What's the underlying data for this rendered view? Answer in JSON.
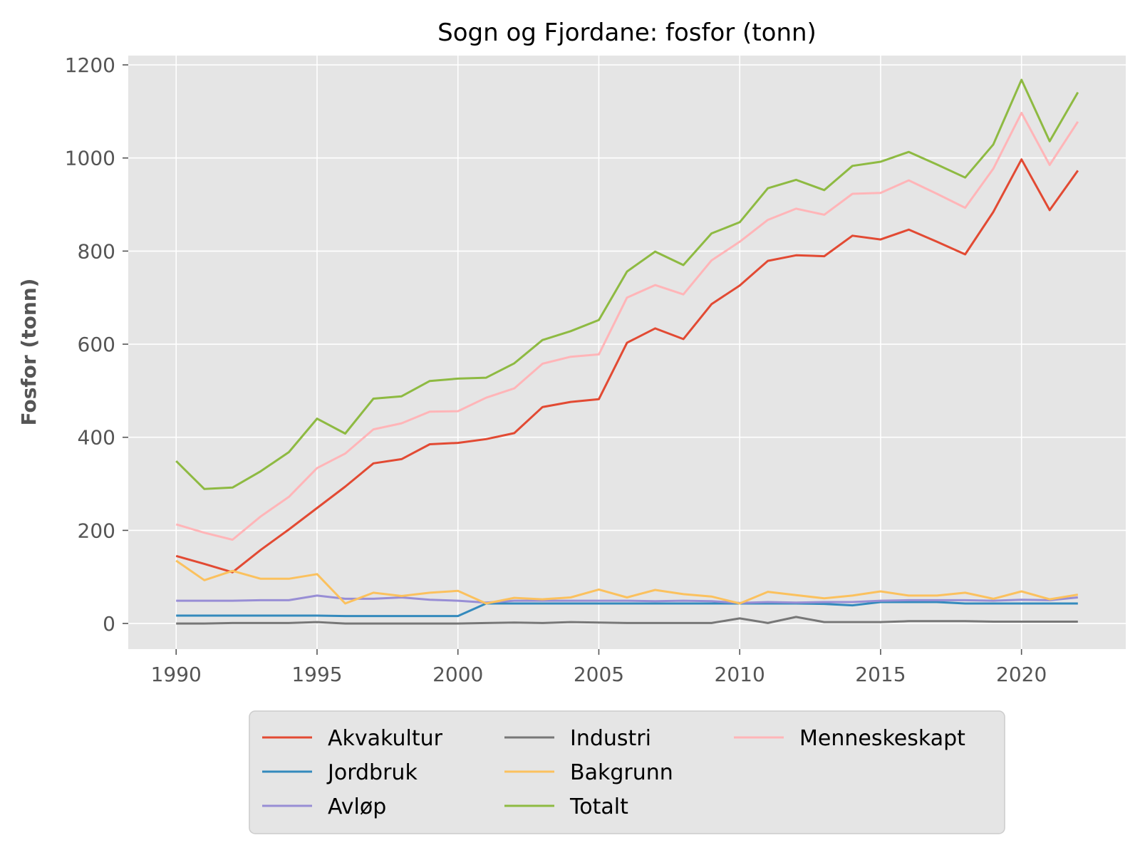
{
  "chart_data": {
    "type": "line",
    "title": "Sogn og Fjordane: fosfor (tonn)",
    "xlabel": "",
    "ylabel": "Fosfor (tonn)",
    "xlim": [
      1988.3,
      2023.7
    ],
    "ylim": [
      -55,
      1220
    ],
    "x_ticks": [
      1990,
      1995,
      2000,
      2005,
      2010,
      2015,
      2020
    ],
    "y_ticks": [
      0,
      200,
      400,
      600,
      800,
      1000,
      1200
    ],
    "grid": true,
    "legend_position": "bottom-center",
    "background": "#e5e5e5",
    "x": [
      1990,
      1991,
      1992,
      1993,
      1994,
      1995,
      1996,
      1997,
      1998,
      1999,
      2000,
      2001,
      2002,
      2003,
      2004,
      2005,
      2006,
      2007,
      2008,
      2009,
      2010,
      2011,
      2012,
      2013,
      2014,
      2015,
      2016,
      2017,
      2018,
      2019,
      2020,
      2021,
      2022
    ],
    "series": [
      {
        "name": "Akvakultur",
        "color": "#E24A33",
        "values": [
          145,
          128,
          110,
          158,
          202,
          248,
          294,
          344,
          353,
          385,
          388,
          396,
          409,
          465,
          476,
          482,
          603,
          634,
          611,
          686,
          726,
          779,
          791,
          789,
          833,
          825,
          846,
          820,
          793,
          884,
          997,
          888,
          973
        ]
      },
      {
        "name": "Jordbruk",
        "color": "#348ABD",
        "values": [
          17,
          17,
          17,
          17,
          17,
          17,
          16,
          16,
          16,
          16,
          16,
          43,
          43,
          43,
          43,
          43,
          43,
          43,
          43,
          43,
          43,
          43,
          43,
          42,
          39,
          46,
          46,
          46,
          43,
          43,
          43,
          43,
          43
        ]
      },
      {
        "name": "Avløp",
        "color": "#988ED5",
        "values": [
          49,
          49,
          49,
          50,
          50,
          60,
          53,
          53,
          56,
          51,
          49,
          45,
          49,
          49,
          49,
          49,
          49,
          48,
          49,
          48,
          44,
          46,
          45,
          46,
          46,
          49,
          50,
          50,
          50,
          49,
          51,
          50,
          56
        ]
      },
      {
        "name": "Industri",
        "color": "#777777",
        "values": [
          0,
          0,
          1,
          1,
          1,
          3,
          0,
          0,
          0,
          0,
          0,
          1,
          2,
          1,
          3,
          2,
          1,
          1,
          1,
          1,
          11,
          1,
          14,
          3,
          3,
          3,
          5,
          5,
          5,
          4,
          4,
          4,
          4
        ]
      },
      {
        "name": "Bakgrunn",
        "color": "#FBC15E",
        "values": [
          135,
          93,
          113,
          96,
          96,
          106,
          43,
          66,
          59,
          66,
          70,
          43,
          55,
          52,
          56,
          73,
          56,
          72,
          63,
          58,
          43,
          68,
          61,
          54,
          60,
          69,
          60,
          60,
          66,
          53,
          69,
          52,
          62
        ]
      },
      {
        "name": "Totalt",
        "color": "#8EBA42",
        "values": [
          349,
          289,
          292,
          327,
          368,
          440,
          408,
          483,
          488,
          521,
          526,
          528,
          559,
          609,
          628,
          652,
          756,
          799,
          770,
          838,
          862,
          935,
          953,
          931,
          983,
          992,
          1013,
          986,
          958,
          1029,
          1168,
          1036,
          1141
        ]
      },
      {
        "name": "Menneskeskapt",
        "color": "#FFB5B8",
        "values": [
          213,
          195,
          180,
          230,
          272,
          334,
          365,
          417,
          430,
          455,
          456,
          485,
          505,
          558,
          573,
          578,
          700,
          727,
          707,
          780,
          820,
          867,
          891,
          878,
          923,
          925,
          952,
          923,
          893,
          977,
          1097,
          985,
          1078
        ]
      }
    ]
  }
}
